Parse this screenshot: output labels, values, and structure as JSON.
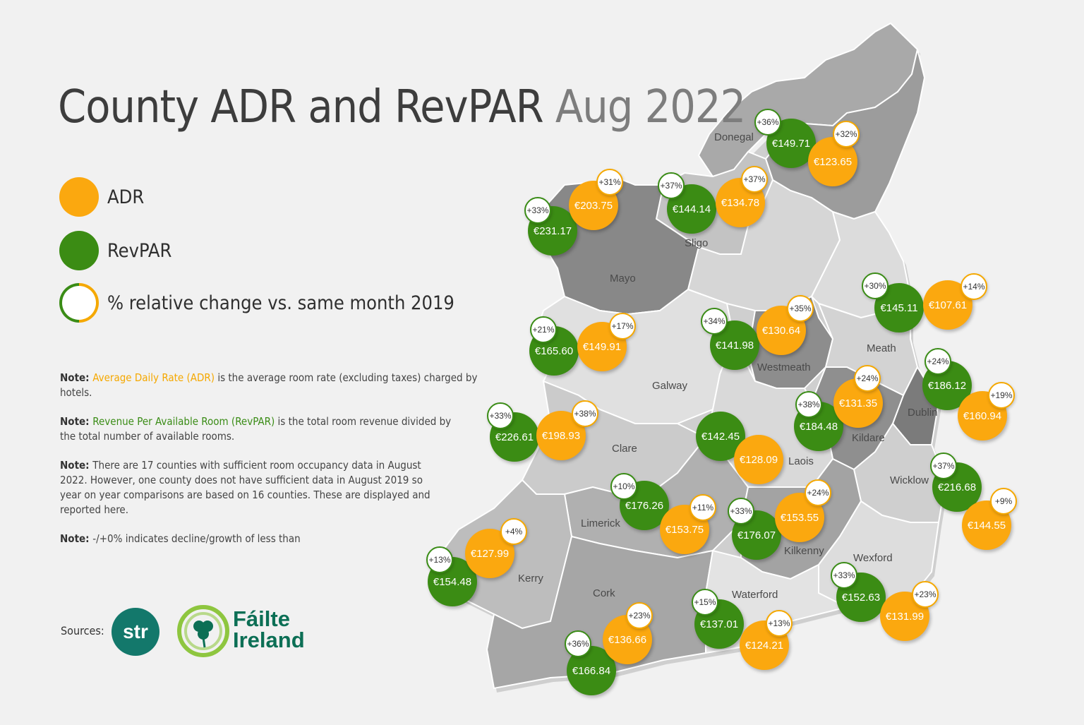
{
  "title": {
    "main": "County ADR and RevPAR",
    "date": "Aug 2022"
  },
  "legend": {
    "adr": "ADR",
    "revpar": "RevPAR",
    "change": "% relative change vs. same month 2019",
    "colors": {
      "adr": "#fba80f",
      "revpar": "#3b8c14"
    }
  },
  "notes": [
    {
      "prefix": "Note: ",
      "term": "Average Daily Rate (ADR)",
      "text": " is the average room rate (excluding taxes) charged by hotels."
    },
    {
      "prefix": "Note: ",
      "term": "Revenue Per Available Room (RevPAR)",
      "text": " is the total room revenue divided by the total number of available rooms."
    },
    {
      "prefix": "Note: ",
      "term": "",
      "text": "There are 17 counties with sufficient room occupancy data in August 2022. However, one county does not have sufficient data in August 2019 so year on year comparisons are based on 16 counties. These are displayed and reported here."
    },
    {
      "prefix": "Note: ",
      "term": "",
      "text": "-/+0% indicates decline/growth of less than"
    }
  ],
  "sources": {
    "label": "Sources:",
    "str": "str",
    "failte_line1": "Fáilte",
    "failte_line2": "Ireland"
  },
  "county_labels": [
    "Donegal",
    "Sligo",
    "Mayo",
    "Galway",
    "Westmeath",
    "Meath",
    "Dublin",
    "Kildare",
    "Laois",
    "Clare",
    "Limerick",
    "Wicklow",
    "Kerry",
    "Cork",
    "Kilkenny",
    "Waterford",
    "Wexford"
  ],
  "bubbles": [
    {
      "type": "rev",
      "value": "€149.71",
      "change": "+36%"
    },
    {
      "type": "adr",
      "value": "€123.65",
      "change": "+32%"
    },
    {
      "type": "rev",
      "value": "€231.17",
      "change": "+33%"
    },
    {
      "type": "adr",
      "value": "€203.75",
      "change": "+31%"
    },
    {
      "type": "rev",
      "value": "€144.14",
      "change": "+37%"
    },
    {
      "type": "adr",
      "value": "€134.78",
      "change": "+37%"
    },
    {
      "type": "rev",
      "value": "€145.11",
      "change": "+30%"
    },
    {
      "type": "adr",
      "value": "€107.61",
      "change": "+14%"
    },
    {
      "type": "rev",
      "value": "€165.60",
      "change": "+21%"
    },
    {
      "type": "adr",
      "value": "€149.91",
      "change": "+17%"
    },
    {
      "type": "rev",
      "value": "€141.98",
      "change": "+34%"
    },
    {
      "type": "adr",
      "value": "€130.64",
      "change": "+35%"
    },
    {
      "type": "rev",
      "value": "€186.12",
      "change": "+24%"
    },
    {
      "type": "adr",
      "value": "€160.94",
      "change": "+19%"
    },
    {
      "type": "rev",
      "value": "€184.48",
      "change": "+38%"
    },
    {
      "type": "adr",
      "value": "€131.35",
      "change": "+24%"
    },
    {
      "type": "rev",
      "value": "€226.61",
      "change": "+33%"
    },
    {
      "type": "adr",
      "value": "€198.93",
      "change": "+38%"
    },
    {
      "type": "rev",
      "value": "€142.45",
      "change": ""
    },
    {
      "type": "adr",
      "value": "€128.09",
      "change": ""
    },
    {
      "type": "rev",
      "value": "€216.68",
      "change": "+37%"
    },
    {
      "type": "adr",
      "value": "€144.55",
      "change": "+9%"
    },
    {
      "type": "rev",
      "value": "€176.26",
      "change": "+10%"
    },
    {
      "type": "adr",
      "value": "€153.75",
      "change": "+11%"
    },
    {
      "type": "rev",
      "value": "€176.07",
      "change": "+33%"
    },
    {
      "type": "adr",
      "value": "€153.55",
      "change": "+24%"
    },
    {
      "type": "rev",
      "value": "€154.48",
      "change": "+13%"
    },
    {
      "type": "adr",
      "value": "€127.99",
      "change": "+4%"
    },
    {
      "type": "rev",
      "value": "€152.63",
      "change": "+33%"
    },
    {
      "type": "adr",
      "value": "€131.99",
      "change": "+23%"
    },
    {
      "type": "rev",
      "value": "€137.01",
      "change": "+15%"
    },
    {
      "type": "adr",
      "value": "€124.21",
      "change": "+13%"
    },
    {
      "type": "rev",
      "value": "€166.84",
      "change": "+36%"
    },
    {
      "type": "adr",
      "value": "€136.66",
      "change": "+23%"
    }
  ]
}
